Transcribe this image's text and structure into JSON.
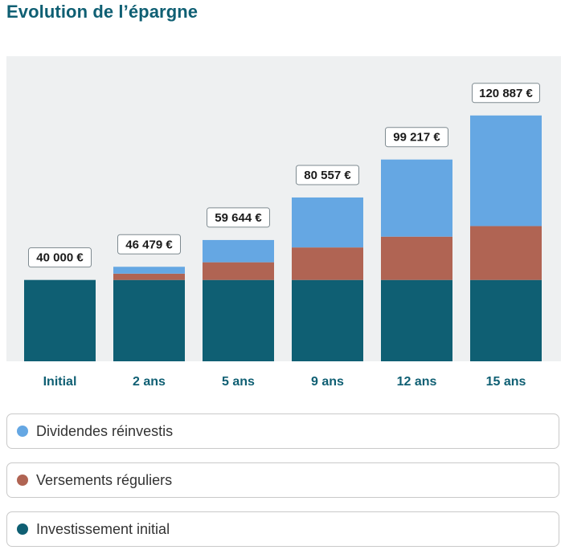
{
  "page": {
    "title": "Evolution de l’épargne"
  },
  "colors": {
    "dividends": "#65a7e3",
    "contributions": "#b06453",
    "initial": "#0f5f73",
    "plot_bg": "#eef0f1",
    "label_text": "#0f5f73"
  },
  "chart_data": {
    "type": "bar",
    "stacked": true,
    "title": "Evolution de l’épargne",
    "categories": [
      "Initial",
      "2 ans",
      "5 ans",
      "9 ans",
      "12 ans",
      "15 ans"
    ],
    "totals_labels": [
      "40 000 €",
      "46 479 €",
      "59 644 €",
      "80 557 €",
      "99 217 €",
      "120 887 €"
    ],
    "series": [
      {
        "name": "Investissement initial",
        "color": "#0f5f73",
        "values": [
          40000,
          40000,
          40000,
          40000,
          40000,
          40000
        ]
      },
      {
        "name": "Versements réguliers",
        "color": "#b06453",
        "values": [
          0,
          3100,
          8700,
          16000,
          21300,
          26500
        ]
      },
      {
        "name": "Dividendes réinvestis",
        "color": "#65a7e3",
        "values": [
          0,
          3379,
          10944,
          24557,
          37917,
          54387
        ]
      }
    ],
    "ylim": [
      0,
      140000
    ],
    "grid": false,
    "legend_position": "bottom"
  },
  "legend": {
    "items": [
      {
        "label": "Dividendes réinvestis",
        "color": "#65a7e3"
      },
      {
        "label": "Versements réguliers",
        "color": "#b06453"
      },
      {
        "label": "Investissement initial",
        "color": "#0f5f73"
      }
    ]
  }
}
